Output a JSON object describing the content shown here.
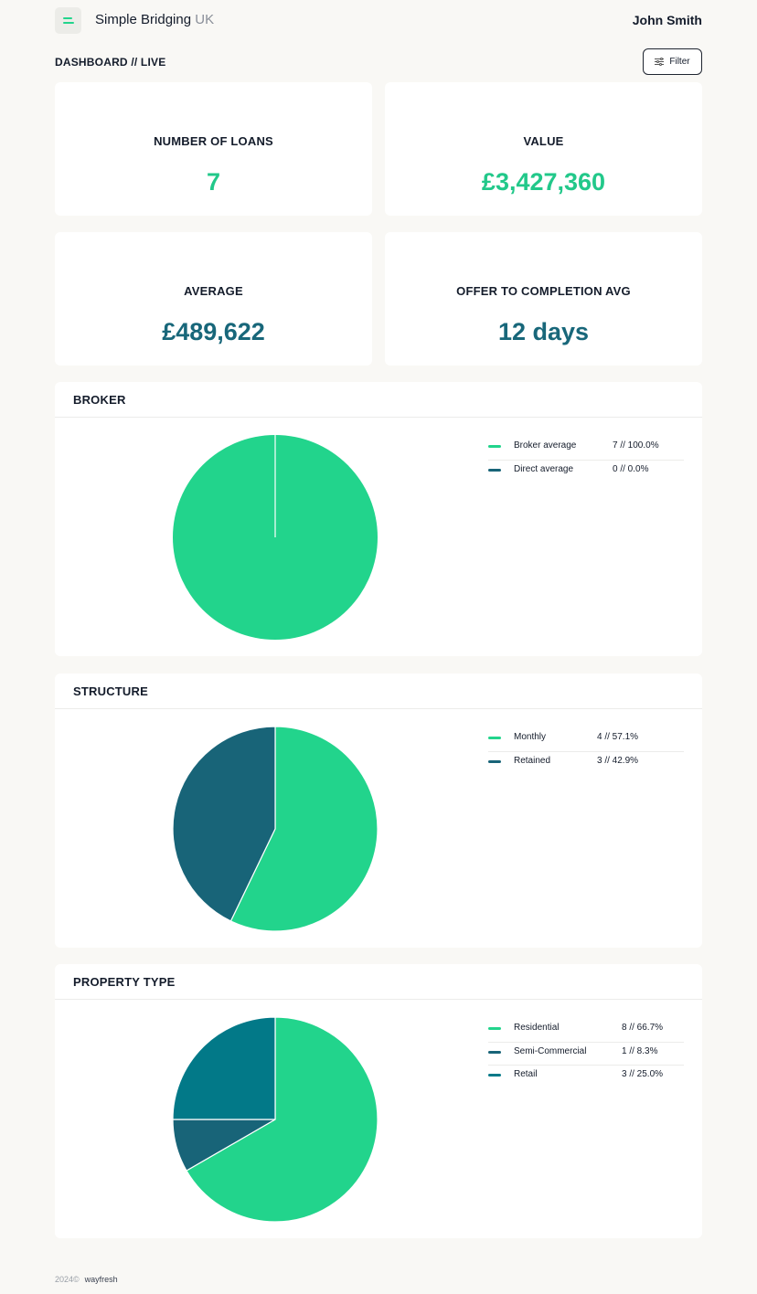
{
  "header": {
    "brand_main": "Simple Bridging",
    "brand_suffix": "UK",
    "user_name": "John Smith",
    "logo_icon": "menu-lines-icon"
  },
  "toolbar": {
    "page_title": "DASHBOARD // LIVE",
    "filter_label": "Filter",
    "filter_icon": "sliders-icon"
  },
  "stats": [
    {
      "label": "NUMBER OF LOANS",
      "value": "7",
      "color": "#22c88a"
    },
    {
      "label": "VALUE",
      "value": "£3,427,360",
      "color": "#22c88a"
    },
    {
      "label": "AVERAGE",
      "value": "£489,622",
      "color": "#18677a"
    },
    {
      "label": "OFFER TO COMPLETION AVG",
      "value": "12 days",
      "color": "#18677a"
    }
  ],
  "colors": {
    "green": "#22d48c",
    "dark_teal": "#186478",
    "teal": "#027988"
  },
  "chart_data": [
    {
      "type": "pie",
      "title": "BROKER",
      "categories": [
        "Broker average",
        "Direct average"
      ],
      "values": [
        7,
        0
      ],
      "display": [
        "7 // 100.0%",
        "0 // 0.0%"
      ],
      "colors": [
        "#22d48c",
        "#186478"
      ],
      "legend": "right"
    },
    {
      "type": "pie",
      "title": "STRUCTURE",
      "categories": [
        "Monthly",
        "Retained"
      ],
      "values": [
        4,
        3
      ],
      "display": [
        "4 // 57.1%",
        "3 // 42.9%"
      ],
      "colors": [
        "#22d48c",
        "#186478"
      ],
      "legend": "right"
    },
    {
      "type": "pie",
      "title": "PROPERTY TYPE",
      "categories": [
        "Residential",
        "Semi-Commercial",
        "Retail"
      ],
      "values": [
        8,
        1,
        3
      ],
      "display": [
        "8 // 66.7%",
        "1 // 8.3%",
        "3 // 25.0%"
      ],
      "colors": [
        "#22d48c",
        "#186478",
        "#027988"
      ],
      "legend": "right"
    }
  ],
  "footer": {
    "year": "2024©",
    "credit": "wayfresh"
  }
}
